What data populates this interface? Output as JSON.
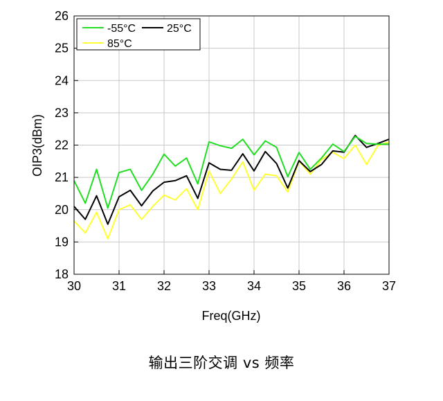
{
  "chart_data": {
    "type": "line",
    "xlabel": "Freq(GHz)",
    "ylabel": "OIP3(dBm)",
    "xlim": [
      30,
      37
    ],
    "ylim": [
      18,
      26
    ],
    "x_ticks": [
      "30",
      "31",
      "32",
      "33",
      "34",
      "35",
      "36",
      "37"
    ],
    "y_ticks": [
      "18",
      "19",
      "20",
      "21",
      "22",
      "23",
      "24",
      "25",
      "26"
    ],
    "grid": true,
    "legend_position": "top-left",
    "x": [
      30,
      30.25,
      30.5,
      30.75,
      31,
      31.25,
      31.5,
      31.75,
      32,
      32.25,
      32.5,
      32.75,
      33,
      33.25,
      33.5,
      33.75,
      34,
      34.25,
      34.5,
      34.75,
      35,
      35.25,
      35.5,
      35.75,
      36,
      36.25,
      36.5,
      36.75,
      37
    ],
    "series": [
      {
        "name": "-55°C",
        "color": "#22dd22",
        "values": [
          20.9,
          20.2,
          21.25,
          20.05,
          21.15,
          21.25,
          20.6,
          21.1,
          21.72,
          21.35,
          21.6,
          20.8,
          22.1,
          21.98,
          21.9,
          22.18,
          21.7,
          22.13,
          21.93,
          21.02,
          21.77,
          21.25,
          21.6,
          22.03,
          21.8,
          22.27,
          22.05,
          22.03,
          22.03
        ]
      },
      {
        "name": "25°C",
        "color": "#000000",
        "values": [
          20.1,
          19.7,
          20.43,
          19.55,
          20.4,
          20.6,
          20.12,
          20.58,
          20.85,
          20.9,
          21.05,
          20.35,
          21.45,
          21.25,
          21.22,
          21.73,
          21.2,
          21.8,
          21.43,
          20.67,
          21.52,
          21.18,
          21.4,
          21.82,
          21.78,
          22.3,
          21.93,
          22.05,
          22.18
        ]
      },
      {
        "name": "85°C",
        "color": "#ffff33",
        "values": [
          19.65,
          19.28,
          19.92,
          19.1,
          20.0,
          20.15,
          19.7,
          20.1,
          20.45,
          20.3,
          20.65,
          20.0,
          21.2,
          20.5,
          20.95,
          21.48,
          20.6,
          21.1,
          21.05,
          20.55,
          21.5,
          21.1,
          21.55,
          21.78,
          21.58,
          22.0,
          21.4,
          21.98,
          22.1
        ]
      }
    ]
  },
  "caption": "输出三阶交调 vs 频率"
}
